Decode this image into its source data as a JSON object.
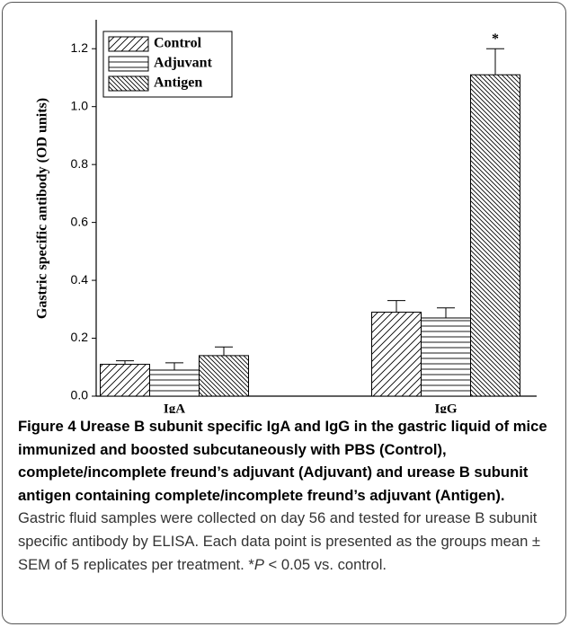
{
  "chart_data": {
    "type": "bar",
    "ylabel": "Gastric specific antibody (OD units)",
    "categories": [
      "IgA",
      "IgG"
    ],
    "series": [
      {
        "name": "Control",
        "color": "#000000",
        "values": [
          0.11,
          0.29
        ],
        "errors": [
          0.012,
          0.04
        ]
      },
      {
        "name": "Adjuvant",
        "color": "#000000",
        "values": [
          0.09,
          0.27
        ],
        "errors": [
          0.025,
          0.035
        ]
      },
      {
        "name": "Antigen",
        "color": "#000000",
        "values": [
          0.14,
          1.11
        ],
        "errors": [
          0.03,
          0.09
        ]
      }
    ],
    "annotations": [
      {
        "text": "*",
        "category": "IgG",
        "series": "Antigen"
      }
    ],
    "ylim": [
      0,
      1.3
    ],
    "yticks": [
      {
        "value": 0,
        "label": "0.0"
      },
      0.2,
      0.4,
      0.6,
      0.8,
      {
        "value": 1,
        "label": "1.0"
      },
      1.2
    ],
    "legend": "upper left"
  },
  "caption": {
    "title": "Figure 4 Urease B subunit specific IgA and IgG in the gastric liquid of mice immunized and boosted subcutaneously with PBS (Control), complete/incomplete freund’s adjuvant (Adjuvant) and urease B subunit antigen containing complete/incomplete freund’s adjuvant (Antigen).",
    "text": "Gastric fluid samples were collected on day 56 and tested for urease B subunit specific antibody by ELISA. Each data point is presented as the groups mean ± SEM of 5 replicates per treatment. *",
    "italic": "P",
    "tail": " < 0.05 vs. control."
  }
}
